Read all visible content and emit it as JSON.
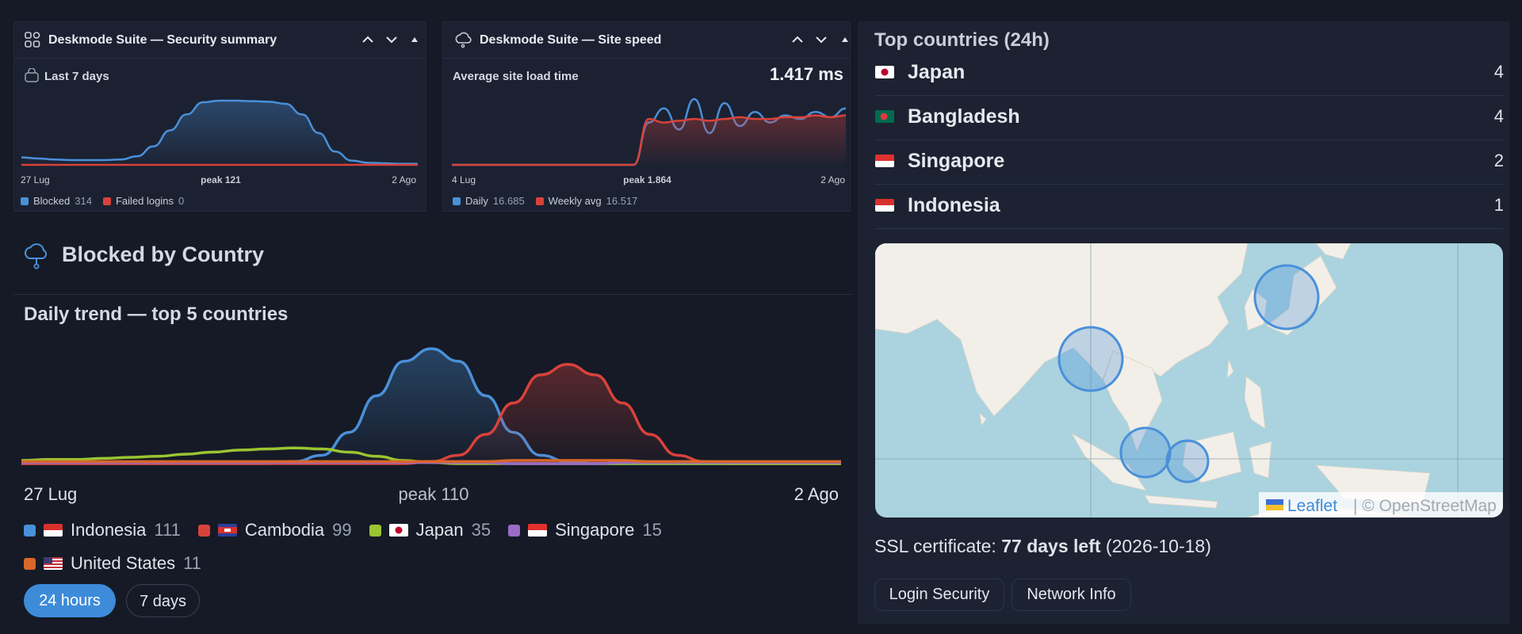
{
  "widgets": [
    {
      "title": "Deskmode Suite — Security summary",
      "subtitle": "Last 7 days",
      "x_start": "27 Lug",
      "x_peak": "peak 121",
      "x_end": "2 Ago",
      "series": [
        {
          "name": "Blocked",
          "total": 314,
          "color": "#4a90d9",
          "area": true,
          "values": [
            14,
            12,
            10,
            9,
            9,
            9,
            10,
            16,
            35,
            65,
            95,
            118,
            121,
            121,
            120,
            119,
            115,
            95,
            60,
            25,
            8,
            4,
            3,
            2,
            2
          ]
        },
        {
          "name": "Failed logins",
          "total": 0,
          "color": "#d9423a",
          "area": false,
          "values": [
            0,
            0,
            0,
            0,
            0,
            0,
            0,
            0,
            0,
            0,
            0,
            0,
            0,
            0,
            0,
            0,
            0,
            0,
            0,
            0,
            0,
            0,
            0,
            0,
            0
          ]
        }
      ]
    },
    {
      "title": "Deskmode Suite — Site speed",
      "subtitle": "Average site load time",
      "headline": "1.417 ms",
      "x_start": "4 Lug",
      "x_peak": "peak 1.864",
      "x_end": "2 Ago",
      "series": [
        {
          "name": "Daily",
          "total": 16.685,
          "color": "#4a90d9",
          "area": false,
          "values": [
            0,
            0,
            0,
            0,
            0,
            0,
            0,
            0,
            0,
            0,
            0,
            0,
            0,
            1.2,
            1.6,
            1.0,
            1.864,
            0.9,
            1.75,
            1.1,
            1.5,
            1.2,
            1.4,
            1.3,
            1.5,
            1.35,
            1.6
          ]
        },
        {
          "name": "Weekly avg",
          "total": 16.517,
          "color": "#d9423a",
          "area": true,
          "values": [
            0,
            0,
            0,
            0,
            0,
            0,
            0,
            0,
            0,
            0,
            0,
            0,
            0,
            1.3,
            1.2,
            1.25,
            1.3,
            1.25,
            1.3,
            1.35,
            1.3,
            1.3,
            1.35,
            1.35,
            1.4,
            1.35,
            1.4
          ]
        }
      ]
    }
  ],
  "blocked": {
    "title": "Blocked by Country",
    "chart_data": {
      "type": "line",
      "title": "Daily trend — top 5 countries",
      "x_start": "27 Lug",
      "x_peak": "peak 110",
      "x_end": "2 Ago",
      "series": [
        {
          "name": "Indonesia",
          "total": 111,
          "color": "#4a90d9",
          "area": true,
          "values": [
            0,
            0,
            0,
            0,
            0,
            0,
            0,
            0,
            0,
            0,
            2,
            8,
            30,
            65,
            98,
            110,
            98,
            65,
            30,
            8,
            2,
            0,
            0,
            0,
            0,
            0,
            0,
            0,
            0,
            0,
            0
          ]
        },
        {
          "name": "Cambodia",
          "total": 99,
          "color": "#d9423a",
          "area": true,
          "values": [
            0,
            0,
            0,
            0,
            0,
            0,
            0,
            0,
            0,
            0,
            0,
            0,
            0,
            0,
            0,
            2,
            8,
            28,
            58,
            85,
            95,
            85,
            58,
            28,
            8,
            2,
            0,
            0,
            0,
            0,
            0
          ]
        },
        {
          "name": "Japan",
          "total": 35,
          "color": "#9ac531",
          "area": false,
          "values": [
            3,
            4,
            4,
            5,
            6,
            7,
            9,
            11,
            13,
            14,
            15,
            14,
            11,
            7,
            3,
            1,
            0,
            0,
            0,
            0,
            0,
            0,
            0,
            0,
            0,
            0,
            0,
            0,
            0,
            0,
            0
          ]
        },
        {
          "name": "Singapore",
          "total": 15,
          "color": "#9b6bc6",
          "area": false,
          "values": [
            1,
            1,
            1,
            1,
            1,
            1,
            1,
            1,
            1,
            1,
            1,
            1,
            1,
            1,
            1,
            1,
            1,
            1,
            0,
            0,
            0,
            0,
            1,
            1,
            1,
            1,
            1,
            1,
            1,
            1,
            1
          ]
        },
        {
          "name": "United States",
          "total": 11,
          "color": "#d9662a",
          "area": false,
          "values": [
            2,
            2,
            2,
            2,
            2,
            2,
            2,
            2,
            2,
            2,
            2,
            2,
            2,
            2,
            2,
            2,
            2,
            2,
            3,
            3,
            3,
            3,
            3,
            2,
            2,
            2,
            2,
            2,
            2,
            2,
            2
          ]
        }
      ]
    },
    "buttons": [
      "24 hours",
      "7 days"
    ]
  },
  "top_countries": {
    "title": "Top countries (24h)",
    "rows": [
      {
        "country": "Japan",
        "count": 4
      },
      {
        "country": "Bangladesh",
        "count": 4
      },
      {
        "country": "Singapore",
        "count": 2
      },
      {
        "country": "Indonesia",
        "count": 1
      }
    ]
  },
  "map": {
    "attribution_link": "Leaflet",
    "attribution": "| © OpenStreetMap"
  },
  "ssl": {
    "label": "SSL certificate:",
    "days": "77 days left",
    "date": "(2026-10-18)"
  },
  "tabs": [
    "Login Security",
    "Network Info"
  ]
}
